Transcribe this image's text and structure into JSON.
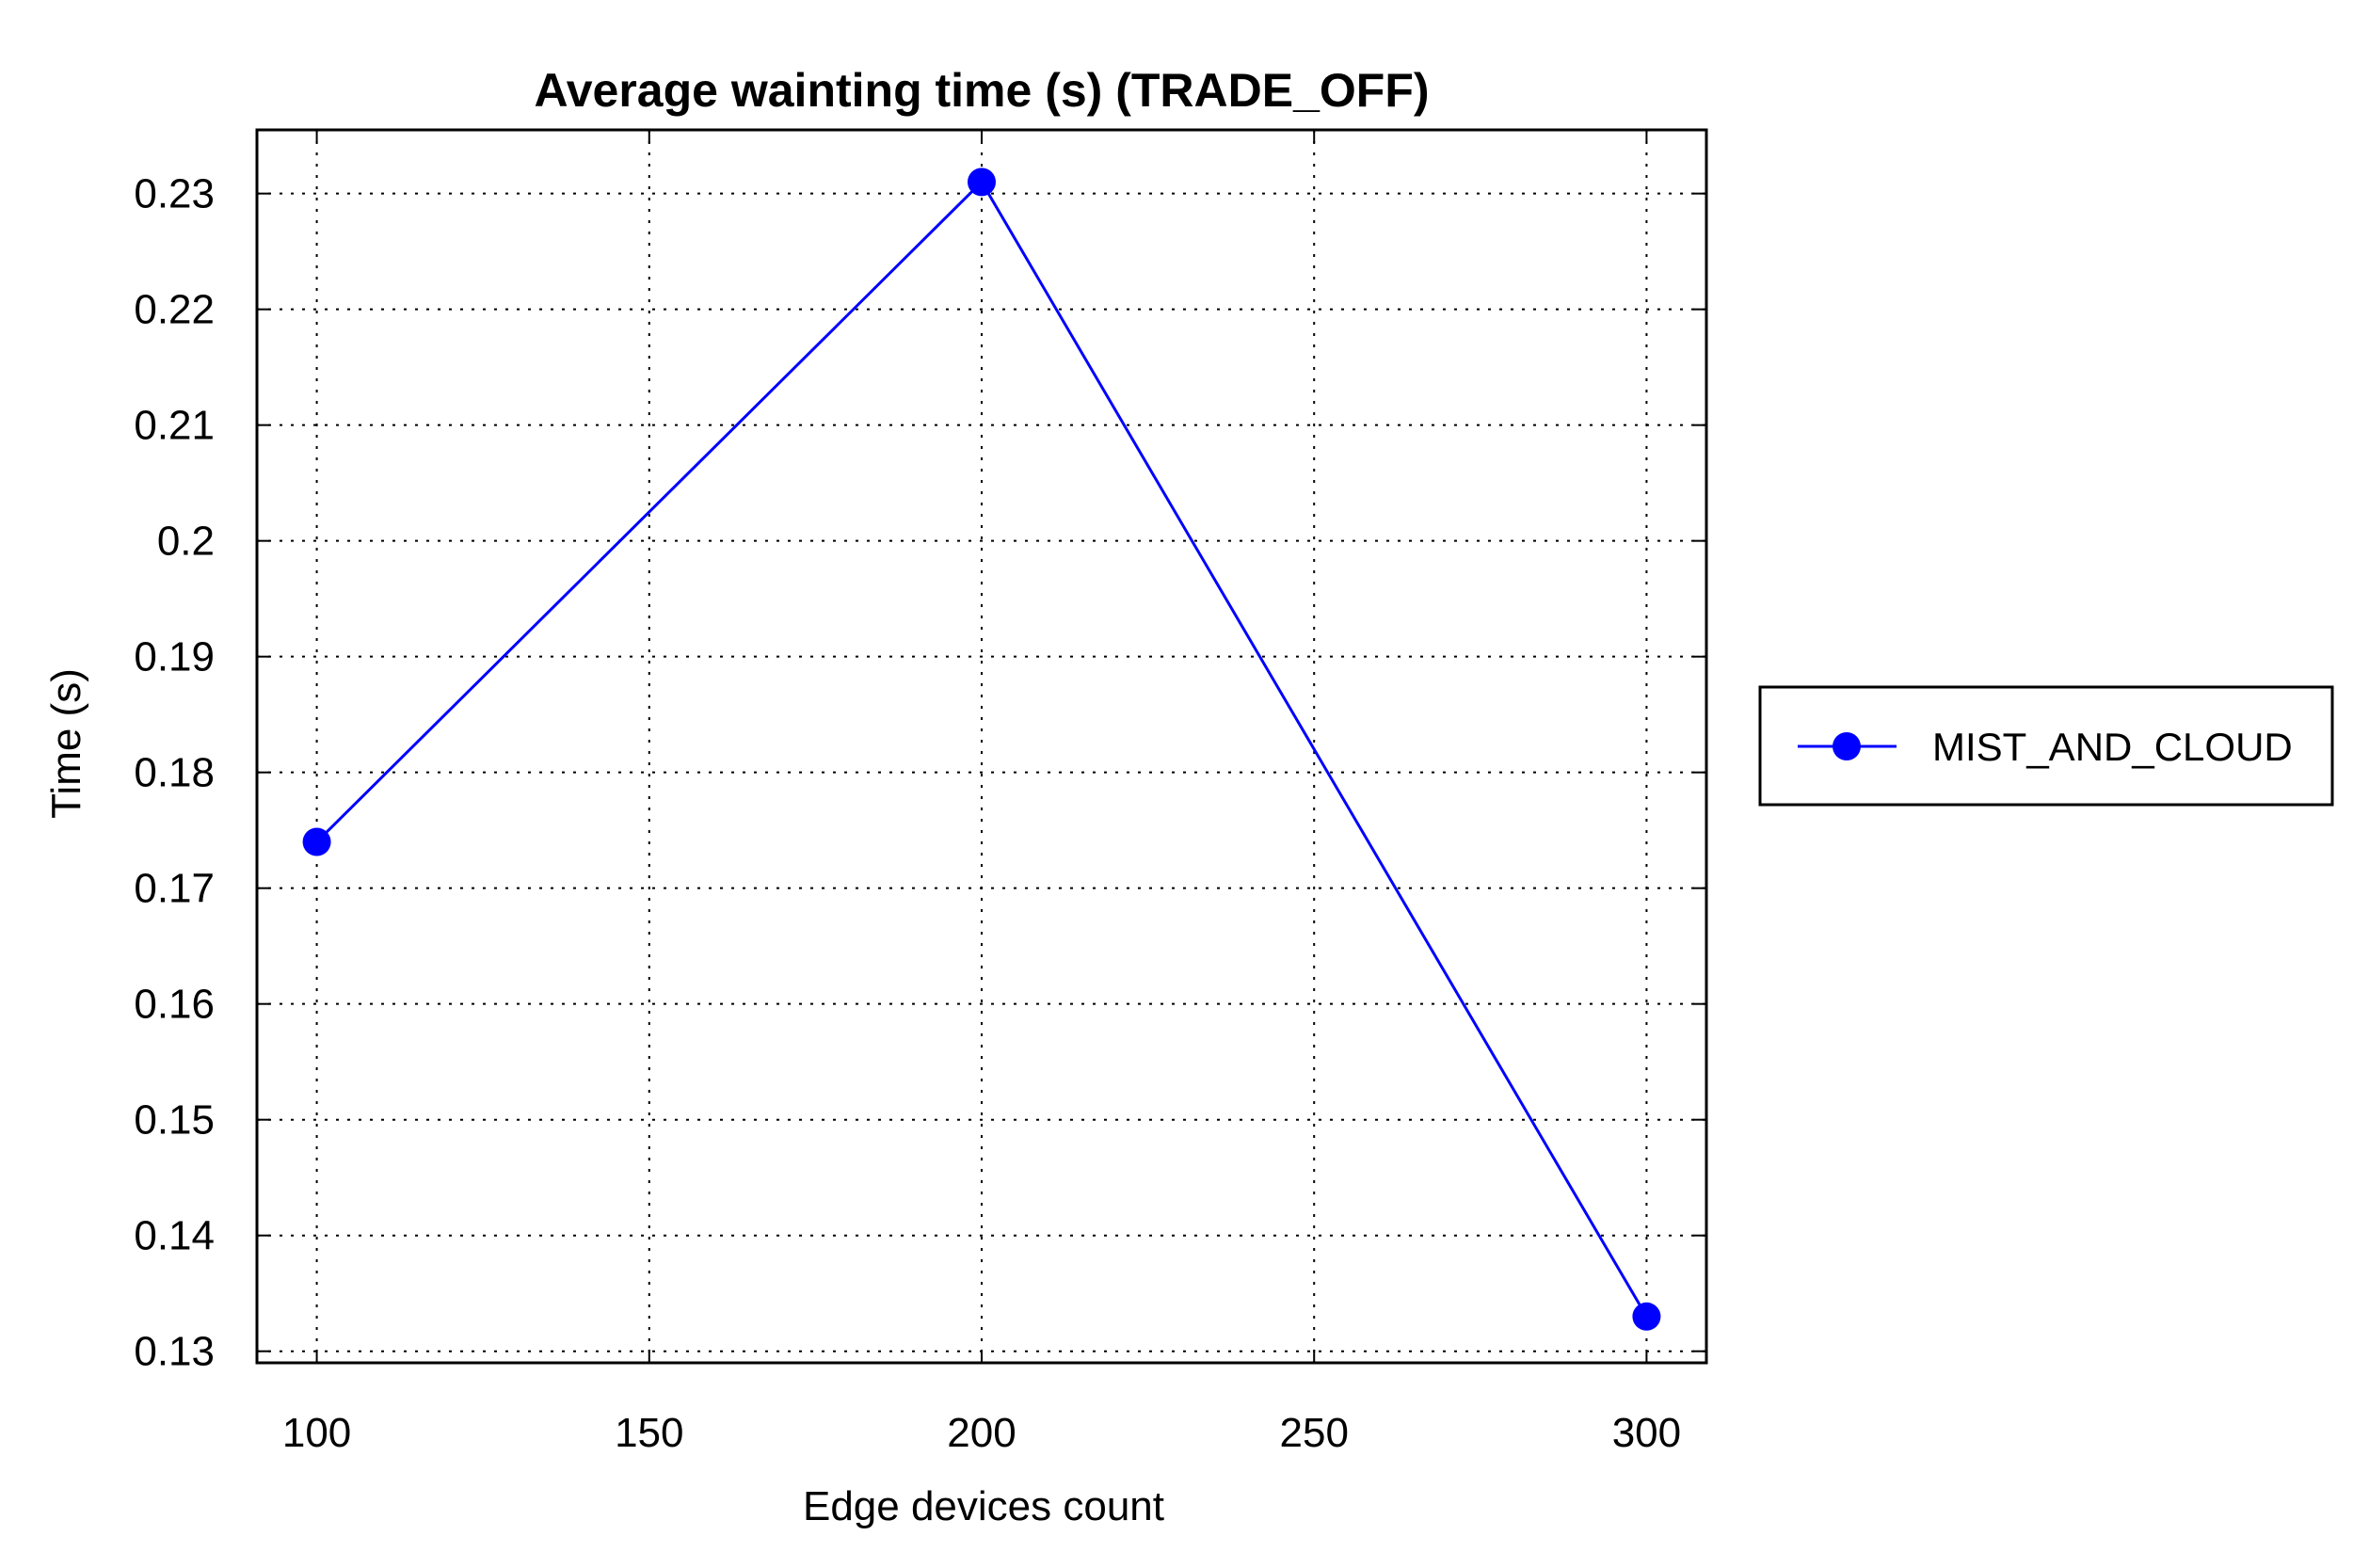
{
  "chart_data": {
    "type": "line",
    "title": "Average wainting time (s) (TRADE_OFF)",
    "xlabel": "Edge devices count",
    "ylabel": "Time (s)",
    "xlim": [
      91,
      309
    ],
    "ylim": [
      0.129,
      0.2355
    ],
    "x_ticks": [
      100,
      150,
      200,
      250,
      300
    ],
    "y_ticks": [
      0.13,
      0.14,
      0.15,
      0.16,
      0.17,
      0.18,
      0.19,
      0.2,
      0.21,
      0.22,
      0.23
    ],
    "grid": true,
    "legend_position": "right",
    "series": [
      {
        "name": "MIST_AND_CLOUD",
        "color": "#0000ff",
        "marker": "circle",
        "x": [
          100,
          200,
          300
        ],
        "y": [
          0.174,
          0.231,
          0.133
        ]
      }
    ]
  }
}
